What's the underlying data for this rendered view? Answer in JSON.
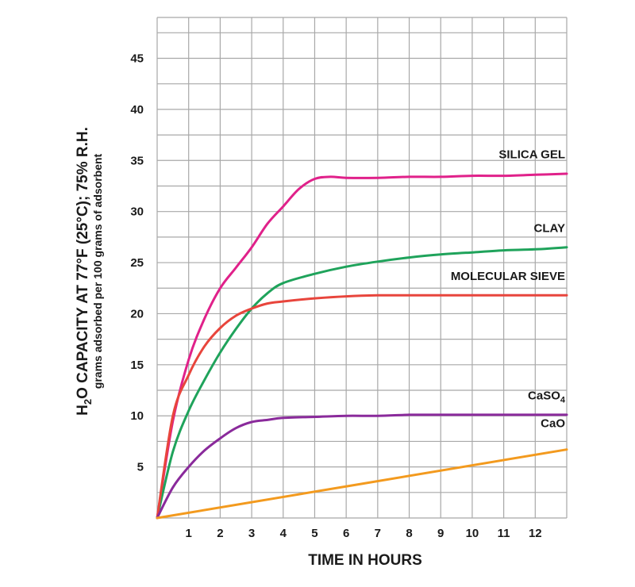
{
  "chart_data": {
    "type": "line",
    "xlabel": "TIME IN HOURS",
    "ylabel": {
      "main_prefix": "H",
      "main_subscript": "2",
      "main_suffix": "O CAPACITY AT 77°F (25°C); 75% R.H.",
      "sub": "grams adsorbed per 100 grams of adsorbent"
    },
    "xlim": [
      0,
      13
    ],
    "ylim": [
      0,
      49
    ],
    "x_ticks": [
      "1",
      "2",
      "3",
      "4",
      "5",
      "6",
      "7",
      "8",
      "9",
      "10",
      "11",
      "12"
    ],
    "y_ticks": [
      "5",
      "10",
      "15",
      "20",
      "25",
      "30",
      "35",
      "40",
      "45"
    ],
    "grid": true,
    "series": [
      {
        "name": "SILICA GEL",
        "color": "#e0218a",
        "x": [
          0,
          0.5,
          1,
          1.5,
          2,
          2.5,
          3,
          3.5,
          4,
          4.5,
          5,
          5.5,
          6,
          7,
          8,
          9,
          10,
          11,
          12,
          13
        ],
        "y": [
          0,
          9.5,
          15.5,
          19.5,
          22.5,
          24.5,
          26.5,
          28.8,
          30.5,
          32.2,
          33.2,
          33.4,
          33.3,
          33.3,
          33.4,
          33.4,
          33.5,
          33.5,
          33.6,
          33.7
        ]
      },
      {
        "name": "CLAY",
        "color": "#1fa35b",
        "x": [
          0,
          0.5,
          1,
          1.5,
          2,
          2.5,
          3,
          3.5,
          4,
          5,
          6,
          7,
          8,
          9,
          10,
          11,
          12,
          13
        ],
        "y": [
          0,
          6.5,
          10.5,
          13.5,
          16.2,
          18.5,
          20.5,
          22,
          23,
          23.9,
          24.6,
          25.1,
          25.5,
          25.8,
          26,
          26.2,
          26.3,
          26.5
        ]
      },
      {
        "name": "MOLECULAR SIEVE",
        "color": "#e8453c",
        "x": [
          0,
          0.5,
          1,
          1.5,
          2,
          2.5,
          3,
          3.5,
          4,
          5,
          6,
          7,
          8,
          9,
          10,
          11,
          12,
          13
        ],
        "y": [
          0,
          10,
          14,
          16.8,
          18.6,
          19.8,
          20.5,
          21,
          21.2,
          21.5,
          21.7,
          21.8,
          21.8,
          21.8,
          21.8,
          21.8,
          21.8,
          21.8
        ]
      },
      {
        "name": "CaSO",
        "name_subscript": "4",
        "color": "#8a2a9b",
        "x": [
          0,
          0.5,
          1,
          1.5,
          2,
          2.5,
          3,
          3.5,
          4,
          5,
          6,
          7,
          8,
          9,
          10,
          11,
          12,
          13
        ],
        "y": [
          0,
          3,
          5,
          6.6,
          7.8,
          8.8,
          9.4,
          9.6,
          9.8,
          9.9,
          10,
          10,
          10.1,
          10.1,
          10.1,
          10.1,
          10.1,
          10.1
        ]
      },
      {
        "name": "CaO",
        "color": "#f39a1e",
        "x": [
          0,
          13
        ],
        "y": [
          0,
          6.7
        ]
      }
    ]
  }
}
